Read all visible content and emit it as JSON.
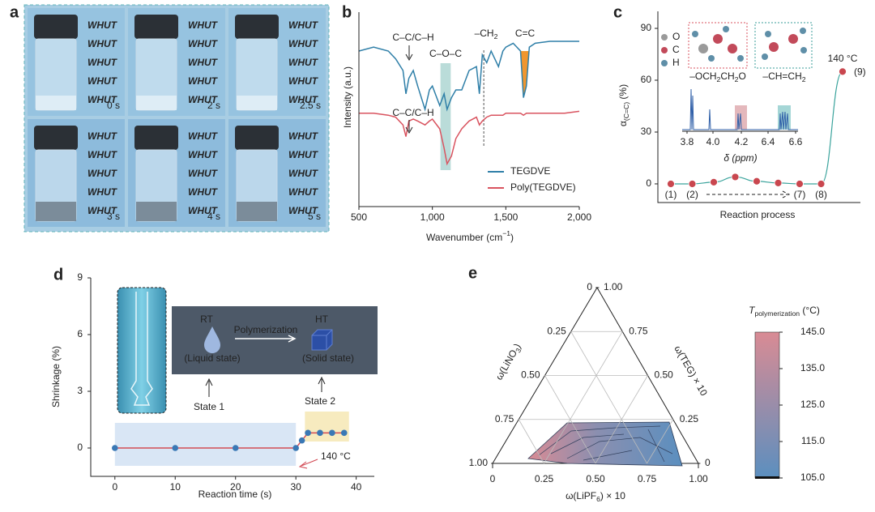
{
  "panel_a": {
    "label": "a",
    "watermark": "WHUT",
    "times": [
      "0 s",
      "2 s",
      "2.5 s",
      "3 s",
      "4 s",
      "5 s"
    ]
  },
  "chart_data": [
    {
      "type": "line",
      "label": "b",
      "x": [
        500,
        600,
        700,
        750,
        800,
        820,
        840,
        870,
        900,
        950,
        980,
        1000,
        1050,
        1080,
        1100,
        1130,
        1160,
        1200,
        1250,
        1300,
        1320,
        1340,
        1370,
        1400,
        1450,
        1480,
        1500,
        1550,
        1600,
        1620,
        1640,
        1660,
        1700,
        1800,
        1900,
        2000
      ],
      "series": [
        {
          "name": "TEGDVE",
          "color": "#2f7fa8",
          "values": [
            80,
            82,
            80,
            76,
            70,
            58,
            66,
            70,
            62,
            50,
            60,
            62,
            52,
            58,
            50,
            56,
            60,
            60,
            70,
            72,
            58,
            78,
            74,
            80,
            72,
            80,
            82,
            84,
            80,
            56,
            62,
            82,
            84,
            85,
            85,
            85
          ]
        },
        {
          "name": "Poly(TEGDVE)",
          "color": "#d9535f",
          "values": [
            48,
            48,
            47,
            46,
            42,
            36,
            44,
            45,
            44,
            42,
            44,
            45,
            40,
            30,
            22,
            26,
            35,
            40,
            44,
            46,
            42,
            44,
            46,
            47,
            47,
            47,
            48,
            48,
            48,
            47,
            48,
            48,
            48,
            48,
            48,
            49
          ]
        }
      ],
      "xlim": [
        500,
        2000
      ],
      "ylim": [
        0,
        100
      ],
      "xticks": [
        500,
        {
          "value": 1000,
          "label": "1,000"
        },
        {
          "value": 1500,
          "label": "1,500"
        },
        {
          "value": 2000,
          "label": "2,000"
        }
      ],
      "xlabel": [
        "Wavenumber (cm",
        "−1",
        ")"
      ],
      "ylabel": "Intensity (a.u.)",
      "annotations": [
        [
          "C–C/C–H"
        ],
        [
          "C–O–C"
        ],
        [
          "–CH",
          "2"
        ],
        [
          "C=C"
        ],
        [
          "C–C/C–H"
        ]
      ]
    },
    {
      "type": "scatter",
      "label": "c",
      "categories": [
        "(1)",
        "(2)",
        null,
        null,
        null,
        null,
        "(7)",
        "(8)",
        "(9)"
      ],
      "values": [
        0,
        0,
        1,
        4,
        1.5,
        0.5,
        0,
        0,
        65
      ],
      "color": "#c9474f",
      "ylim": [
        -10,
        100
      ],
      "yticks": [
        0,
        30,
        60,
        90
      ],
      "xlabel": "Reaction process",
      "ylabel": [
        "α",
        "(C=C)",
        " (%)"
      ],
      "annotation": "140 °C",
      "atoms": [
        "O",
        "C",
        "H"
      ],
      "atom_colors": [
        "#9a9a9a",
        "#c24a5a",
        "#5f8fa8"
      ],
      "fragments": [
        [
          "–OCH",
          "2",
          "CH",
          "2",
          "O"
        ],
        [
          "–CH=CH",
          "2"
        ]
      ],
      "inset_xticks": [
        "3.8",
        "4.0",
        "4.2",
        "6.4",
        "6.6"
      ],
      "inset_xlabel": "δ (ppm)"
    },
    {
      "type": "line",
      "label": "d",
      "x": [
        0,
        10,
        20,
        30,
        31,
        32,
        34,
        36,
        38
      ],
      "values": [
        0,
        0,
        0,
        0,
        0.4,
        0.8,
        0.8,
        0.8,
        0.8
      ],
      "color": "#d24b55",
      "marker_color": "#3a78b5",
      "xlim": [
        -4,
        43
      ],
      "ylim": [
        -1.5,
        9
      ],
      "xticks": [
        0,
        10,
        20,
        30,
        40
      ],
      "yticks": [
        0,
        3,
        6,
        9
      ],
      "xlabel": "Reaction time (s)",
      "ylabel": "Shrinkage (%)",
      "annotation": "140 °C",
      "scheme": {
        "start": "RT",
        "end": "HT",
        "process": "Polymerization",
        "start_state": "(Liquid state)",
        "end_state": "(Solid state)"
      },
      "states": [
        "State 1",
        "State 2"
      ]
    },
    {
      "type": "ternary",
      "label": "e",
      "left_ticks": [
        0,
        0.25,
        {
          "value": 0.5,
          "label": "0.50"
        },
        0.75,
        {
          "value": 1,
          "label": "1.00"
        }
      ],
      "right_ticks": [
        {
          "value": 1,
          "label": "1.00"
        },
        0.75,
        {
          "value": 0.5,
          "label": "0.50"
        },
        0.25,
        0
      ],
      "bottom_ticks": [
        0,
        0.25,
        {
          "value": 0.5,
          "label": "0.50"
        },
        0.75,
        {
          "value": 1,
          "label": "1.00"
        }
      ],
      "left_label": [
        "ω(LiNO",
        "3",
        ")"
      ],
      "right_label": "ω(TEG) × 10",
      "bottom_label": [
        "ω(LiPF",
        "6",
        ") × 10"
      ],
      "colorbar": {
        "title": [
          "T",
          "polymerization",
          " (°C)"
        ],
        "lim": [
          105,
          145
        ],
        "ticks": [
          {
            "value": 145,
            "label": "145.0"
          },
          {
            "value": 135,
            "label": "135.0"
          },
          {
            "value": 125,
            "label": "125.0"
          },
          {
            "value": 115,
            "label": "115.0"
          },
          {
            "value": 105,
            "label": "105.0"
          }
        ],
        "colors": [
          "#d98b94",
          "#5b8fbf"
        ]
      }
    }
  ]
}
